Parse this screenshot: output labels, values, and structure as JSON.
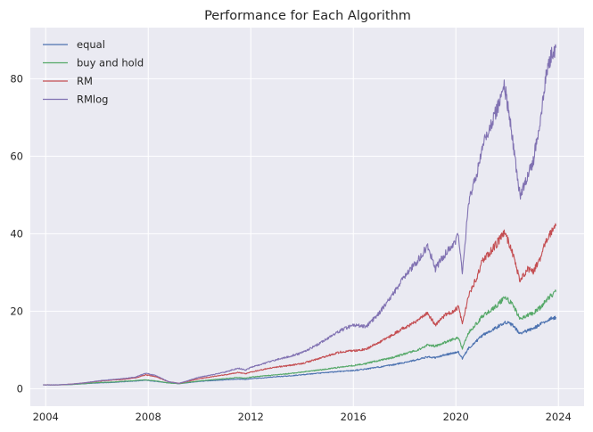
{
  "chart_data": {
    "type": "line",
    "title": "Performance for Each Algorithm",
    "xlabel": "",
    "ylabel": "",
    "xlim": [
      2003.4,
      2025.0
    ],
    "ylim": [
      -4.5,
      93.2
    ],
    "x_ticks": [
      2004,
      2008,
      2012,
      2016,
      2020,
      2024
    ],
    "x_tick_labels": [
      "2004",
      "2008",
      "2012",
      "2016",
      "2020",
      "2024"
    ],
    "y_ticks": [
      0,
      20,
      40,
      60,
      80
    ],
    "y_tick_labels": [
      "0",
      "20",
      "40",
      "60",
      "80"
    ],
    "grid": true,
    "legend_position": "upper-left",
    "series": [
      {
        "name": "equal",
        "color": "#4c72b0",
        "x": [
          2003.9,
          2004.5,
          2005.0,
          2005.5,
          2006.0,
          2006.5,
          2007.0,
          2007.5,
          2007.9,
          2008.3,
          2008.8,
          2009.2,
          2009.6,
          2010.0,
          2010.5,
          2011.0,
          2011.5,
          2011.8,
          2012.0,
          2012.5,
          2013.0,
          2013.5,
          2014.0,
          2014.5,
          2015.0,
          2015.5,
          2016.0,
          2016.5,
          2017.0,
          2017.5,
          2018.0,
          2018.5,
          2018.9,
          2019.2,
          2019.6,
          2019.9,
          2020.1,
          2020.25,
          2020.5,
          2020.8,
          2021.0,
          2021.3,
          2021.6,
          2021.9,
          2022.2,
          2022.5,
          2022.8,
          2023.0,
          2023.3,
          2023.6,
          2023.9
        ],
        "y": [
          1.0,
          1.0,
          1.1,
          1.3,
          1.5,
          1.6,
          1.8,
          2.0,
          2.2,
          1.9,
          1.5,
          1.3,
          1.6,
          1.9,
          2.1,
          2.3,
          2.5,
          2.4,
          2.6,
          2.8,
          3.1,
          3.3,
          3.6,
          3.9,
          4.2,
          4.5,
          4.7,
          5.1,
          5.6,
          6.1,
          6.8,
          7.5,
          8.2,
          8.0,
          8.8,
          9.2,
          9.5,
          7.8,
          10.5,
          12.3,
          13.6,
          14.8,
          15.9,
          17.2,
          16.5,
          14.2,
          15.0,
          15.5,
          16.6,
          17.8,
          18.5
        ]
      },
      {
        "name": "buy and hold",
        "color": "#55a868",
        "x": [
          2003.9,
          2004.5,
          2005.0,
          2005.5,
          2006.0,
          2006.5,
          2007.0,
          2007.5,
          2007.9,
          2008.3,
          2008.8,
          2009.2,
          2009.6,
          2010.0,
          2010.5,
          2011.0,
          2011.5,
          2011.8,
          2012.0,
          2012.5,
          2013.0,
          2013.5,
          2014.0,
          2014.5,
          2015.0,
          2015.5,
          2016.0,
          2016.5,
          2017.0,
          2017.5,
          2018.0,
          2018.5,
          2018.9,
          2019.2,
          2019.6,
          2019.9,
          2020.1,
          2020.25,
          2020.5,
          2020.8,
          2021.0,
          2021.3,
          2021.6,
          2021.9,
          2022.2,
          2022.5,
          2022.8,
          2023.0,
          2023.3,
          2023.6,
          2023.9
        ],
        "y": [
          1.0,
          1.0,
          1.1,
          1.3,
          1.6,
          1.7,
          1.9,
          2.1,
          2.3,
          2.0,
          1.5,
          1.3,
          1.7,
          2.0,
          2.3,
          2.6,
          2.9,
          2.7,
          3.0,
          3.3,
          3.6,
          3.9,
          4.3,
          4.7,
          5.1,
          5.6,
          6.0,
          6.5,
          7.3,
          8.0,
          9.0,
          10.0,
          11.3,
          11.0,
          12.0,
          12.8,
          13.2,
          10.4,
          14.5,
          16.8,
          18.5,
          20.0,
          21.5,
          23.5,
          22.0,
          18.0,
          19.0,
          19.5,
          21.0,
          23.5,
          25.0
        ]
      },
      {
        "name": "RM",
        "color": "#c44e52",
        "x": [
          2003.9,
          2004.5,
          2005.0,
          2005.5,
          2006.0,
          2006.5,
          2007.0,
          2007.5,
          2007.9,
          2008.3,
          2008.8,
          2009.2,
          2009.6,
          2010.0,
          2010.5,
          2011.0,
          2011.5,
          2011.8,
          2012.0,
          2012.5,
          2013.0,
          2013.5,
          2014.0,
          2014.5,
          2015.0,
          2015.5,
          2016.0,
          2016.5,
          2017.0,
          2017.5,
          2018.0,
          2018.5,
          2018.9,
          2019.2,
          2019.6,
          2019.9,
          2020.1,
          2020.25,
          2020.5,
          2020.8,
          2021.0,
          2021.3,
          2021.6,
          2021.9,
          2022.2,
          2022.5,
          2022.8,
          2023.0,
          2023.3,
          2023.6,
          2023.9
        ],
        "y": [
          1.0,
          1.0,
          1.2,
          1.5,
          1.9,
          2.2,
          2.4,
          2.8,
          3.6,
          3.1,
          1.8,
          1.4,
          2.0,
          2.6,
          3.1,
          3.6,
          4.2,
          3.9,
          4.3,
          5.0,
          5.6,
          6.0,
          6.5,
          7.5,
          8.5,
          9.5,
          9.8,
          10.2,
          12.0,
          13.8,
          15.8,
          17.5,
          19.5,
          16.5,
          19.0,
          20.0,
          21.0,
          17.0,
          24.0,
          28.5,
          32.5,
          35.0,
          37.5,
          40.5,
          35.0,
          28.0,
          31.0,
          30.0,
          34.0,
          39.5,
          42.0
        ]
      },
      {
        "name": "RMlog",
        "color": "#8172b2",
        "x": [
          2003.9,
          2004.5,
          2005.0,
          2005.5,
          2006.0,
          2006.5,
          2007.0,
          2007.5,
          2007.9,
          2008.3,
          2008.8,
          2009.2,
          2009.6,
          2010.0,
          2010.5,
          2011.0,
          2011.5,
          2011.8,
          2012.0,
          2012.5,
          2013.0,
          2013.5,
          2014.0,
          2014.5,
          2015.0,
          2015.5,
          2016.0,
          2016.5,
          2017.0,
          2017.5,
          2018.0,
          2018.5,
          2018.9,
          2019.2,
          2019.6,
          2019.9,
          2020.1,
          2020.25,
          2020.5,
          2020.8,
          2021.0,
          2021.3,
          2021.6,
          2021.9,
          2022.2,
          2022.5,
          2022.8,
          2023.0,
          2023.3,
          2023.6,
          2023.9
        ],
        "y": [
          1.0,
          1.0,
          1.2,
          1.5,
          2.0,
          2.3,
          2.6,
          3.0,
          4.0,
          3.4,
          1.8,
          1.4,
          2.2,
          3.0,
          3.6,
          4.3,
          5.3,
          4.8,
          5.5,
          6.5,
          7.5,
          8.3,
          9.3,
          11.0,
          13.0,
          15.0,
          16.5,
          16.0,
          19.5,
          24.0,
          29.0,
          33.0,
          37.0,
          31.0,
          35.0,
          37.0,
          40.0,
          30.0,
          48.0,
          55.0,
          62.0,
          67.0,
          72.0,
          78.0,
          65.0,
          50.0,
          55.0,
          58.0,
          70.0,
          84.0,
          88.0
        ]
      }
    ]
  }
}
